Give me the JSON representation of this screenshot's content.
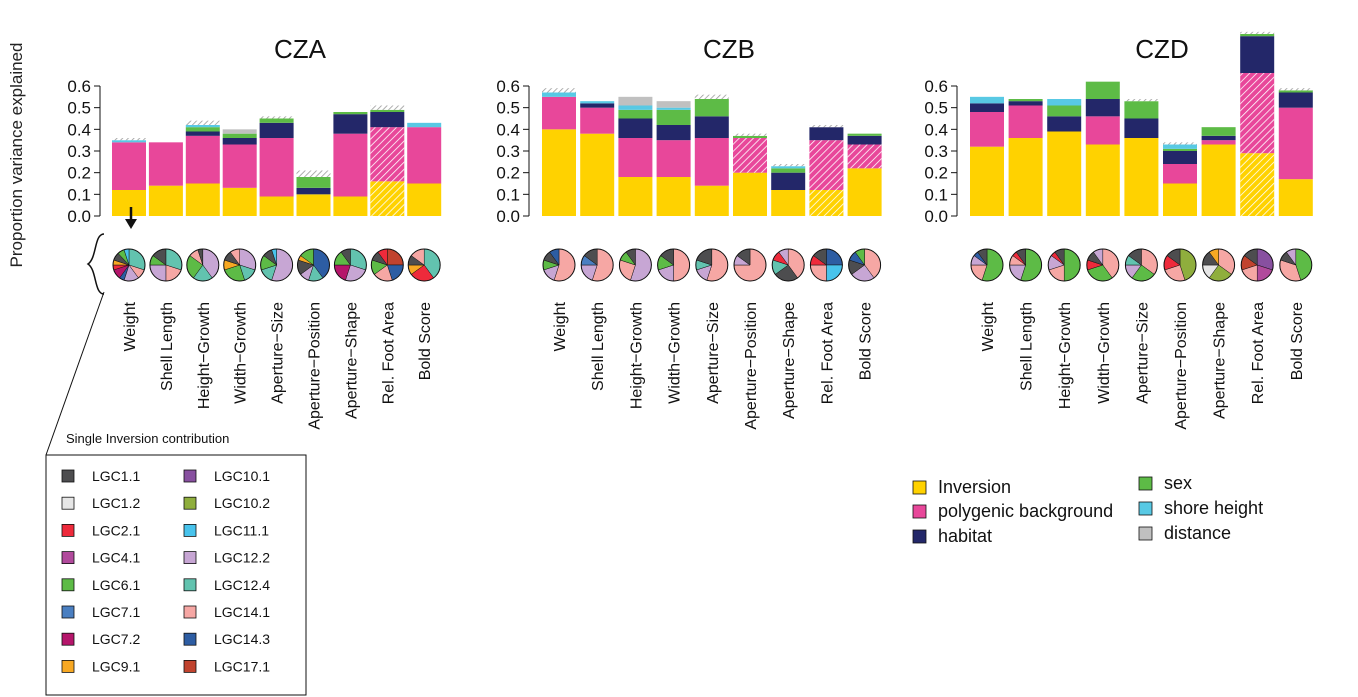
{
  "ylabel": "Proportion variance explained",
  "colors": {
    "Inversion": "#FFD200",
    "polygenic background": "#E8479A",
    "habitat": "#232769",
    "sex": "#5DBB46",
    "shore height": "#58C9E4",
    "distance": "#C0C0C0"
  },
  "traits": [
    "Weight",
    "Shell Length",
    "Height−Growth",
    "Width−Growth",
    "Aperture−Size",
    "Aperture−Position",
    "Aperture−Shape",
    "Rel. Foot Area",
    "Bold Score"
  ],
  "legend": {
    "items": [
      "Inversion",
      "polygenic background",
      "habitat",
      "sex",
      "shore height",
      "distance"
    ]
  },
  "inversion_legend": {
    "title": "Single Inversion contribution",
    "items": [
      {
        "label": "LGC1.1",
        "color": "#4D4D4F"
      },
      {
        "label": "LGC1.2",
        "color": "#E6E6E6"
      },
      {
        "label": "LGC2.1",
        "color": "#EE2A3B"
      },
      {
        "label": "LGC4.1",
        "color": "#B14A9C"
      },
      {
        "label": "LGC6.1",
        "color": "#5DBB46"
      },
      {
        "label": "LGC7.1",
        "color": "#4A7FC1"
      },
      {
        "label": "LGC7.2",
        "color": "#B5156B"
      },
      {
        "label": "LGC9.1",
        "color": "#F7A823"
      },
      {
        "label": "LGC10.1",
        "color": "#8850A0"
      },
      {
        "label": "LGC10.2",
        "color": "#8FAE3D"
      },
      {
        "label": "LGC11.1",
        "color": "#48C3EC"
      },
      {
        "label": "LGC12.2",
        "color": "#C7A6D4"
      },
      {
        "label": "LGC12.4",
        "color": "#62C3AF"
      },
      {
        "label": "LGC14.1",
        "color": "#F6A7A4"
      },
      {
        "label": "LGC14.3",
        "color": "#2D5DA3"
      },
      {
        "label": "LGC17.1",
        "color": "#C1432E"
      }
    ]
  },
  "chart_data": [
    {
      "type": "bar",
      "title": "CZA",
      "ylim": [
        0,
        0.6
      ],
      "yticks": [
        "0.0",
        "0.1",
        "0.2",
        "0.3",
        "0.4",
        "0.5",
        "0.6"
      ],
      "categories": [
        "Weight",
        "Shell Length",
        "Height−Growth",
        "Width−Growth",
        "Aperture−Size",
        "Aperture−Position",
        "Aperture−Shape",
        "Rel. Foot Area",
        "Bold Score"
      ],
      "series": [
        {
          "name": "Inversion",
          "values": [
            0.12,
            0.14,
            0.15,
            0.13,
            0.09,
            0.1,
            0.09,
            0.16,
            0.15
          ]
        },
        {
          "name": "polygenic background",
          "values": [
            0.22,
            0.2,
            0.22,
            0.2,
            0.27,
            0.0,
            0.29,
            0.25,
            0.26
          ]
        },
        {
          "name": "habitat",
          "values": [
            0.0,
            0.0,
            0.02,
            0.03,
            0.07,
            0.03,
            0.09,
            0.07,
            0.0
          ]
        },
        {
          "name": "sex",
          "values": [
            0.0,
            0.0,
            0.02,
            0.02,
            0.02,
            0.05,
            0.01,
            0.01,
            0.0
          ]
        },
        {
          "name": "shore height",
          "values": [
            0.01,
            0.0,
            0.01,
            0.0,
            0.0,
            0.0,
            0.0,
            0.0,
            0.02
          ]
        },
        {
          "name": "distance",
          "values": [
            0.0,
            0.0,
            0.0,
            0.02,
            0.0,
            0.0,
            0.0,
            0.0,
            0.0
          ]
        }
      ],
      "hatched": [
        {
          "category": "Aperture−Position",
          "value": 0.03
        },
        {
          "category": "Rel. Foot Area",
          "value": 0.02
        },
        {
          "category": "Weight",
          "value": 0.01
        },
        {
          "category": "Height−Growth",
          "value": 0.02
        },
        {
          "category": "Aperture−Size",
          "value": 0.01
        }
      ],
      "hatched_segments": {
        "Rel. Foot Area": [
          "Inversion",
          "polygenic background"
        ]
      },
      "pies": [
        [
          [
            "#62C3AF",
            0.3
          ],
          [
            "#F6A7A4",
            0.1
          ],
          [
            "#C7A6D4",
            0.15
          ],
          [
            "#2D5DA3",
            0.05
          ],
          [
            "#B5156B",
            0.1
          ],
          [
            "#EE2A3B",
            0.05
          ],
          [
            "#F7A823",
            0.05
          ],
          [
            "#4D4D4F",
            0.08
          ],
          [
            "#5DBB46",
            0.07
          ],
          [
            "#48C3EC",
            0.05
          ]
        ],
        [
          [
            "#62C3AF",
            0.3
          ],
          [
            "#F6A7A4",
            0.2
          ],
          [
            "#C7A6D4",
            0.25
          ],
          [
            "#5DBB46",
            0.1
          ],
          [
            "#4D4D4F",
            0.15
          ]
        ],
        [
          [
            "#C7A6D4",
            0.4
          ],
          [
            "#62C3AF",
            0.2
          ],
          [
            "#5DBB46",
            0.25
          ],
          [
            "#F6A7A4",
            0.1
          ],
          [
            "#4D4D4F",
            0.05
          ]
        ],
        [
          [
            "#C7A6D4",
            0.3
          ],
          [
            "#62C3AF",
            0.15
          ],
          [
            "#5DBB46",
            0.25
          ],
          [
            "#F7A823",
            0.1
          ],
          [
            "#4D4D4F",
            0.1
          ],
          [
            "#F6A7A4",
            0.1
          ]
        ],
        [
          [
            "#C7A6D4",
            0.55
          ],
          [
            "#62C3AF",
            0.15
          ],
          [
            "#5DBB46",
            0.15
          ],
          [
            "#4D4D4F",
            0.1
          ],
          [
            "#48C3EC",
            0.05
          ]
        ],
        [
          [
            "#2D5DA3",
            0.4
          ],
          [
            "#62C3AF",
            0.15
          ],
          [
            "#C7A6D4",
            0.1
          ],
          [
            "#4D4D4F",
            0.15
          ],
          [
            "#F7A823",
            0.05
          ],
          [
            "#5DBB46",
            0.15
          ]
        ],
        [
          [
            "#62C3AF",
            0.3
          ],
          [
            "#C7A6D4",
            0.25
          ],
          [
            "#B5156B",
            0.2
          ],
          [
            "#5DBB46",
            0.15
          ],
          [
            "#4D4D4F",
            0.1
          ]
        ],
        [
          [
            "#C1432E",
            0.25
          ],
          [
            "#2D5DA3",
            0.2
          ],
          [
            "#F6A7A4",
            0.2
          ],
          [
            "#5DBB46",
            0.15
          ],
          [
            "#4D4D4F",
            0.1
          ],
          [
            "#EE2A3B",
            0.1
          ]
        ],
        [
          [
            "#62C3AF",
            0.4
          ],
          [
            "#EE2A3B",
            0.25
          ],
          [
            "#F7A823",
            0.1
          ],
          [
            "#4D4D4F",
            0.1
          ],
          [
            "#F6A7A4",
            0.15
          ]
        ]
      ]
    },
    {
      "type": "bar",
      "title": "CZB",
      "ylim": [
        0,
        0.6
      ],
      "yticks": [
        "0.0",
        "0.1",
        "0.2",
        "0.3",
        "0.4",
        "0.5",
        "0.6"
      ],
      "categories": [
        "Weight",
        "Shell Length",
        "Height−Growth",
        "Width−Growth",
        "Aperture−Size",
        "Aperture−Position",
        "Aperture−Shape",
        "Rel. Foot Area",
        "Bold Score"
      ],
      "series": [
        {
          "name": "Inversion",
          "values": [
            0.4,
            0.38,
            0.18,
            0.18,
            0.14,
            0.2,
            0.12,
            0.12,
            0.22
          ]
        },
        {
          "name": "polygenic background",
          "values": [
            0.15,
            0.12,
            0.18,
            0.17,
            0.22,
            0.16,
            0.0,
            0.23,
            0.11
          ]
        },
        {
          "name": "habitat",
          "values": [
            0.0,
            0.02,
            0.09,
            0.07,
            0.1,
            0.0,
            0.08,
            0.06,
            0.04
          ]
        },
        {
          "name": "sex",
          "values": [
            0.0,
            0.0,
            0.04,
            0.07,
            0.08,
            0.01,
            0.02,
            0.0,
            0.01
          ]
        },
        {
          "name": "shore height",
          "values": [
            0.02,
            0.01,
            0.02,
            0.01,
            0.0,
            0.0,
            0.01,
            0.0,
            0.0
          ]
        },
        {
          "name": "distance",
          "values": [
            0.0,
            0.0,
            0.04,
            0.03,
            0.0,
            0.0,
            0.0,
            0.0,
            0.0
          ]
        }
      ],
      "hatched": [
        {
          "category": "Weight",
          "value": 0.02
        },
        {
          "category": "Aperture−Size",
          "value": 0.02
        },
        {
          "category": "Aperture−Shape",
          "value": 0.01
        },
        {
          "category": "Rel. Foot Area",
          "value": 0.01
        },
        {
          "category": "Aperture−Position",
          "value": 0.01
        }
      ],
      "hatched_segments": {
        "Aperture−Position": [
          "polygenic background"
        ],
        "Rel. Foot Area": [
          "Inversion",
          "polygenic background"
        ],
        "Bold Score": [
          "polygenic background"
        ]
      },
      "pies": [
        [
          [
            "#F6A7A4",
            0.55
          ],
          [
            "#C7A6D4",
            0.15
          ],
          [
            "#5DBB46",
            0.1
          ],
          [
            "#4D4D4F",
            0.1
          ],
          [
            "#2D5DA3",
            0.1
          ]
        ],
        [
          [
            "#F6A7A4",
            0.55
          ],
          [
            "#C7A6D4",
            0.2
          ],
          [
            "#4A7FC1",
            0.1
          ],
          [
            "#4D4D4F",
            0.15
          ]
        ],
        [
          [
            "#C7A6D4",
            0.55
          ],
          [
            "#F6A7A4",
            0.25
          ],
          [
            "#5DBB46",
            0.1
          ],
          [
            "#4D4D4F",
            0.1
          ]
        ],
        [
          [
            "#F6A7A4",
            0.5
          ],
          [
            "#C7A6D4",
            0.2
          ],
          [
            "#5DBB46",
            0.15
          ],
          [
            "#4D4D4F",
            0.15
          ]
        ],
        [
          [
            "#F6A7A4",
            0.55
          ],
          [
            "#C7A6D4",
            0.15
          ],
          [
            "#62C3AF",
            0.1
          ],
          [
            "#4D4D4F",
            0.2
          ]
        ],
        [
          [
            "#F6A7A4",
            0.75
          ],
          [
            "#C7A6D4",
            0.1
          ],
          [
            "#4D4D4F",
            0.15
          ]
        ],
        [
          [
            "#F6A7A4",
            0.4
          ],
          [
            "#4D4D4F",
            0.25
          ],
          [
            "#62C3AF",
            0.15
          ],
          [
            "#EE2A3B",
            0.1
          ],
          [
            "#C7A6D4",
            0.1
          ]
        ],
        [
          [
            "#2D5DA3",
            0.25
          ],
          [
            "#48C3EC",
            0.25
          ],
          [
            "#F6A7A4",
            0.25
          ],
          [
            "#EE2A3B",
            0.1
          ],
          [
            "#4D4D4F",
            0.15
          ]
        ],
        [
          [
            "#F6A7A4",
            0.4
          ],
          [
            "#C7A6D4",
            0.25
          ],
          [
            "#4D4D4F",
            0.15
          ],
          [
            "#2D5DA3",
            0.1
          ],
          [
            "#5DBB46",
            0.1
          ]
        ]
      ]
    },
    {
      "type": "bar",
      "title": "CZD",
      "ylim": [
        0,
        0.6
      ],
      "yticks": [
        "0.0",
        "0.1",
        "0.2",
        "0.3",
        "0.4",
        "0.5",
        "0.6"
      ],
      "categories": [
        "Weight",
        "Shell Length",
        "Height−Growth",
        "Width−Growth",
        "Aperture−Size",
        "Aperture−Position",
        "Aperture−Shape",
        "Rel. Foot Area",
        "Bold Score"
      ],
      "series": [
        {
          "name": "Inversion",
          "values": [
            0.32,
            0.36,
            0.39,
            0.33,
            0.36,
            0.15,
            0.33,
            0.29,
            0.17
          ]
        },
        {
          "name": "polygenic background",
          "values": [
            0.16,
            0.15,
            0.0,
            0.13,
            0.0,
            0.09,
            0.02,
            0.37,
            0.33
          ]
        },
        {
          "name": "habitat",
          "values": [
            0.04,
            0.02,
            0.07,
            0.08,
            0.09,
            0.06,
            0.02,
            0.17,
            0.07
          ]
        },
        {
          "name": "sex",
          "values": [
            0.0,
            0.01,
            0.05,
            0.08,
            0.08,
            0.01,
            0.04,
            0.01,
            0.01
          ]
        },
        {
          "name": "shore height",
          "values": [
            0.03,
            0.0,
            0.03,
            0.0,
            0.0,
            0.02,
            0.0,
            0.0,
            0.0
          ]
        },
        {
          "name": "distance",
          "values": [
            0.0,
            0.0,
            0.0,
            0.0,
            0.0,
            0.0,
            0.0,
            0.0,
            0.0
          ]
        }
      ],
      "hatched": [
        {
          "category": "Rel. Foot Area",
          "value": 0.01
        },
        {
          "category": "Bold Score",
          "value": 0.01
        },
        {
          "category": "Aperture−Size",
          "value": 0.01
        },
        {
          "category": "Aperture−Position",
          "value": 0.01
        }
      ],
      "hatched_segments": {
        "Rel. Foot Area": [
          "Inversion",
          "polygenic background"
        ]
      },
      "pies": [
        [
          [
            "#5DBB46",
            0.55
          ],
          [
            "#F6A7A4",
            0.2
          ],
          [
            "#C7A6D4",
            0.1
          ],
          [
            "#2D5DA3",
            0.05
          ],
          [
            "#4D4D4F",
            0.1
          ]
        ],
        [
          [
            "#5DBB46",
            0.55
          ],
          [
            "#C7A6D4",
            0.2
          ],
          [
            "#F6A7A4",
            0.1
          ],
          [
            "#EE2A3B",
            0.05
          ],
          [
            "#4D4D4F",
            0.1
          ]
        ],
        [
          [
            "#5DBB46",
            0.5
          ],
          [
            "#F6A7A4",
            0.2
          ],
          [
            "#C7A6D4",
            0.15
          ],
          [
            "#EE2A3B",
            0.05
          ],
          [
            "#4D4D4F",
            0.1
          ]
        ],
        [
          [
            "#F6A7A4",
            0.4
          ],
          [
            "#5DBB46",
            0.3
          ],
          [
            "#EE2A3B",
            0.1
          ],
          [
            "#4D4D4F",
            0.1
          ],
          [
            "#C7A6D4",
            0.1
          ]
        ],
        [
          [
            "#F6A7A4",
            0.35
          ],
          [
            "#5DBB46",
            0.25
          ],
          [
            "#C7A6D4",
            0.15
          ],
          [
            "#62C3AF",
            0.1
          ],
          [
            "#4D4D4F",
            0.15
          ]
        ],
        [
          [
            "#8FAE3D",
            0.45
          ],
          [
            "#F6A7A4",
            0.25
          ],
          [
            "#EE2A3B",
            0.15
          ],
          [
            "#4D4D4F",
            0.15
          ]
        ],
        [
          [
            "#F6A7A4",
            0.35
          ],
          [
            "#8FAE3D",
            0.25
          ],
          [
            "#E6E6E6",
            0.15
          ],
          [
            "#4D4D4F",
            0.15
          ],
          [
            "#F7A823",
            0.1
          ]
        ],
        [
          [
            "#8850A0",
            0.3
          ],
          [
            "#B14A9C",
            0.2
          ],
          [
            "#F6A7A4",
            0.2
          ],
          [
            "#C1432E",
            0.15
          ],
          [
            "#4D4D4F",
            0.15
          ]
        ],
        [
          [
            "#5DBB46",
            0.45
          ],
          [
            "#F6A7A4",
            0.35
          ],
          [
            "#4D4D4F",
            0.1
          ],
          [
            "#C7A6D4",
            0.1
          ]
        ]
      ]
    }
  ]
}
